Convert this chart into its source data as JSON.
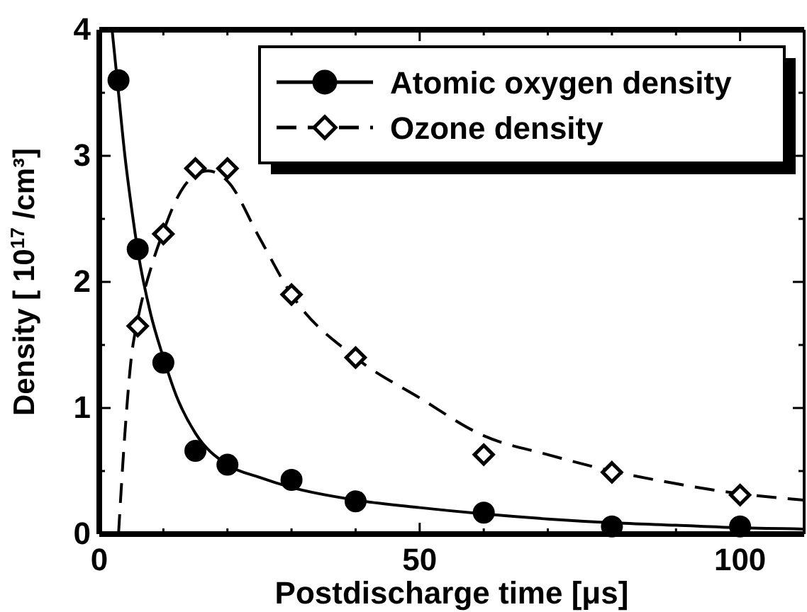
{
  "chart_data": {
    "type": "scatter",
    "xlabel": "Postdischarge time [μs]",
    "ylabel": "Density [ 10$^{17}$ /cm³]",
    "xlim": [
      0,
      110
    ],
    "ylim": [
      0,
      4
    ],
    "xticks": [
      0,
      {
        "value": 10,
        "label": null
      },
      {
        "value": 20,
        "label": null
      },
      {
        "value": 30,
        "label": null
      },
      {
        "value": 40,
        "label": null
      },
      50,
      {
        "value": 60,
        "label": null
      },
      {
        "value": 70,
        "label": null
      },
      {
        "value": 80,
        "label": null
      },
      {
        "value": 90,
        "label": null
      },
      100
    ],
    "yticks": [
      0,
      {
        "value": 0.5,
        "label": null
      },
      1,
      {
        "value": 1.5,
        "label": null
      },
      2,
      {
        "value": 2.5,
        "label": null
      },
      3,
      {
        "value": 3.5,
        "label": null
      },
      4
    ],
    "legend": "top right",
    "grid": false,
    "series": [
      {
        "type": "line",
        "color": "#000000",
        "line_style": "solid",
        "x": [
          2,
          3,
          4,
          5,
          6,
          8,
          10,
          12,
          15,
          20,
          25,
          30,
          40,
          50,
          60,
          70,
          80,
          90,
          100,
          110
        ],
        "values": [
          4.0,
          3.5,
          3.0,
          2.6,
          2.25,
          1.75,
          1.4,
          1.1,
          0.8,
          0.55,
          0.45,
          0.37,
          0.27,
          0.21,
          0.16,
          0.12,
          0.09,
          0.07,
          0.05,
          0.04
        ]
      },
      {
        "type": "line",
        "color": "#000000",
        "line_style": "dashed",
        "x": [
          3,
          4,
          5,
          6,
          8,
          10,
          12,
          15,
          17,
          20,
          25,
          30,
          40,
          50,
          60,
          70,
          80,
          90,
          100,
          110
        ],
        "values": [
          0,
          0.8,
          1.4,
          1.7,
          2.1,
          2.4,
          2.65,
          2.85,
          2.88,
          2.8,
          2.35,
          1.9,
          1.4,
          1.08,
          0.78,
          0.63,
          0.5,
          0.4,
          0.32,
          0.27
        ]
      },
      {
        "name": "Atomic oxygen density",
        "color": "#000000",
        "marker": "circle",
        "x": [
          3,
          6,
          10,
          15,
          20,
          30,
          40,
          60,
          80,
          100
        ],
        "values": [
          3.6,
          2.26,
          1.36,
          0.66,
          0.55,
          0.43,
          0.26,
          0.17,
          0.06,
          0.06
        ]
      },
      {
        "name": "Ozone density",
        "color": "#000000",
        "marker": "diamond",
        "x": [
          6,
          10,
          15,
          20,
          30,
          40,
          60,
          80,
          100
        ],
        "values": [
          1.65,
          2.38,
          2.9,
          2.9,
          1.9,
          1.4,
          0.63,
          0.49,
          0.31
        ]
      }
    ]
  }
}
